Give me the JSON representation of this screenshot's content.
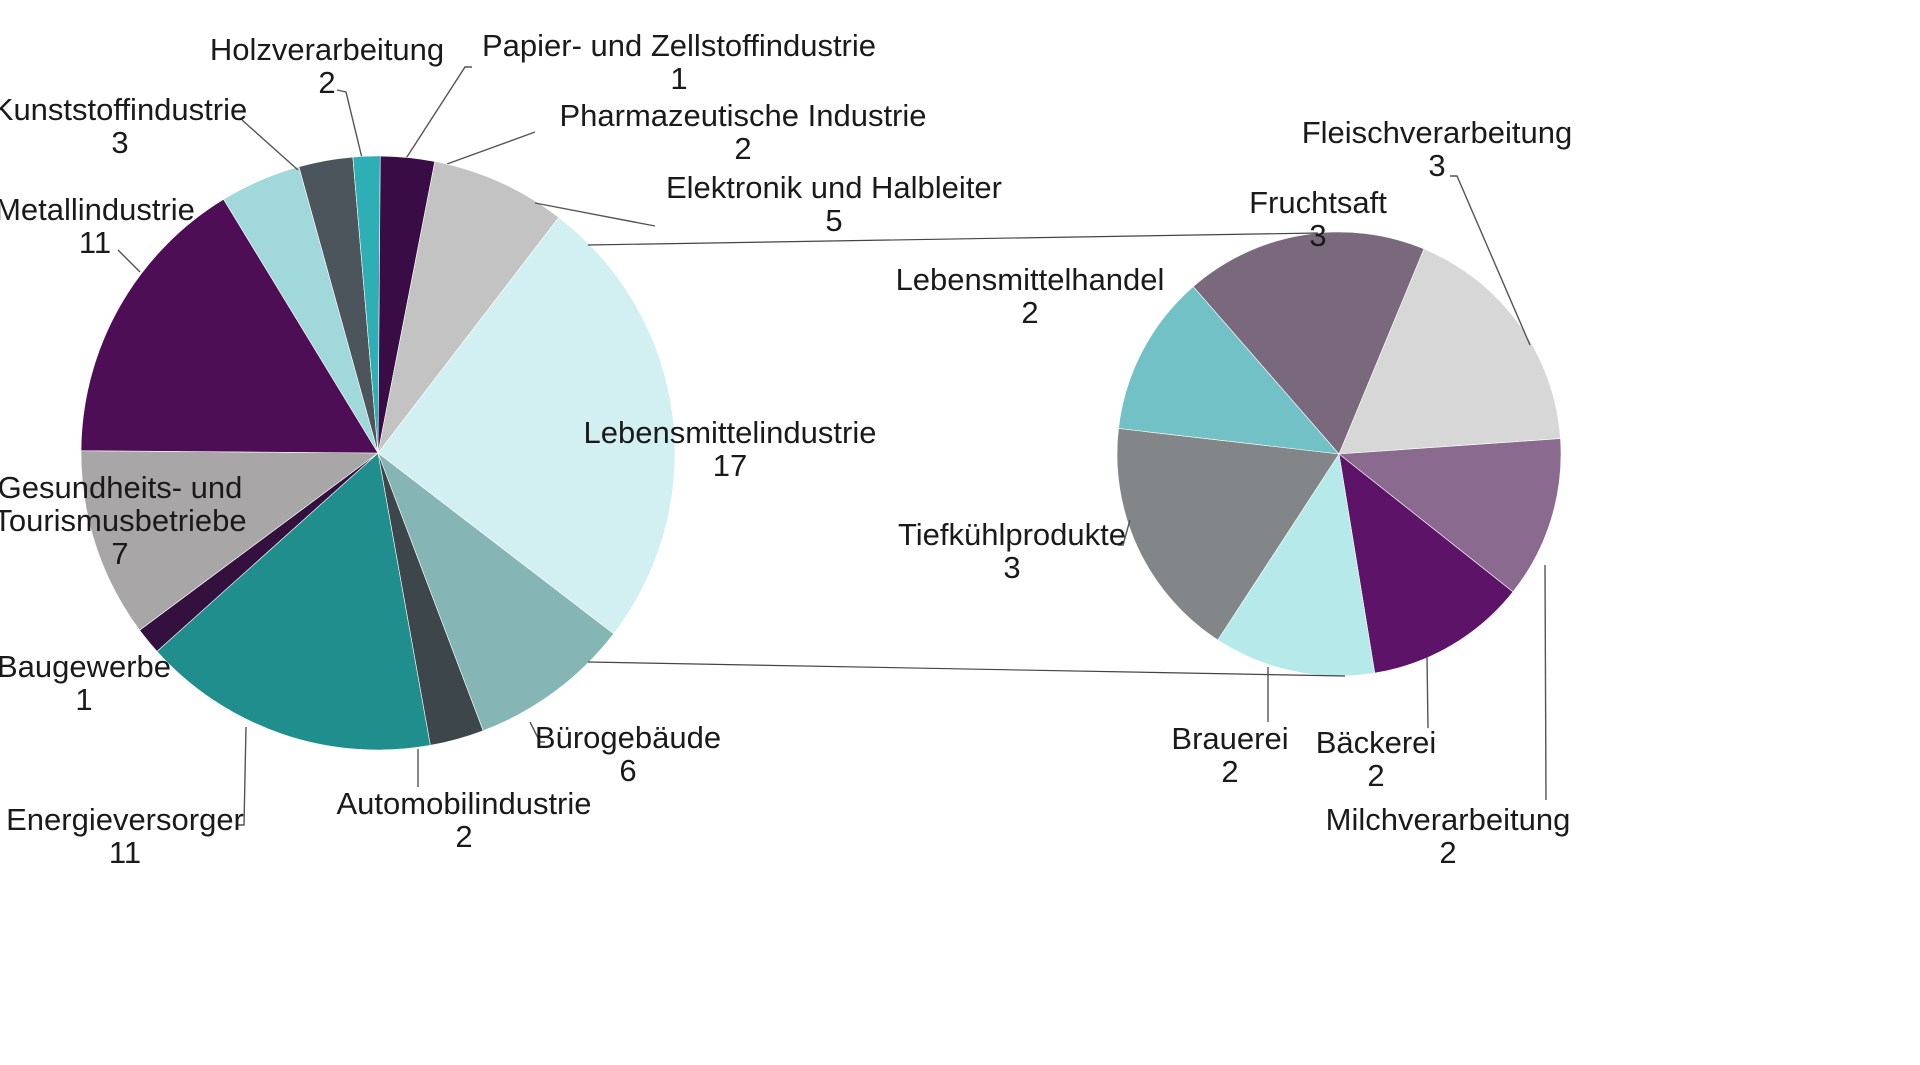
{
  "chart_data": {
    "type": "pie",
    "title": "",
    "main_pie": {
      "slices": [
        {
          "label": "Lebensmittelindustrie",
          "value": 17,
          "color": "#d2f0f2"
        },
        {
          "label": "Bürogebäude",
          "value": 6,
          "color": "#85b5b5"
        },
        {
          "label": "Automobilindustrie",
          "value": 2,
          "color": "#3d464b"
        },
        {
          "label": "Energieversorger",
          "value": 11,
          "color": "#218e8e"
        },
        {
          "label": "Baugewerbe",
          "value": 1,
          "color": "#33103d"
        },
        {
          "label": "Gesundheits- und Tourismusbetriebe",
          "label_lines": [
            "Gesundheits- und",
            "Tourismusbetriebe"
          ],
          "value": 7,
          "color": "#a8a6a7"
        },
        {
          "label": "Metallindustrie",
          "value": 11,
          "color": "#4e0e55"
        },
        {
          "label": "Kunststoffindustrie",
          "value": 3,
          "color": "#a0d8db"
        },
        {
          "label": "Holzverarbeitung",
          "value": 2,
          "color": "#4b555b"
        },
        {
          "label": "Papier- und Zellstoffindustrie",
          "value": 1,
          "color": "#2eaeb5"
        },
        {
          "label": "Pharmazeutische Industrie",
          "value": 2,
          "color": "#3a0c45"
        },
        {
          "label": "Elektronik und Halbleiter",
          "value": 5,
          "color": "#c3c3c3"
        }
      ]
    },
    "secondary_pie": {
      "slices": [
        {
          "label": "Fleischverarbeitung",
          "value": 3,
          "color": "#d7d7d7"
        },
        {
          "label": "Milchverarbeitung",
          "value": 2,
          "color": "#8b6a8f"
        },
        {
          "label": "Bäckerei",
          "value": 2,
          "color": "#5c1368"
        },
        {
          "label": "Brauerei",
          "value": 2,
          "color": "#b6e9ea"
        },
        {
          "label": "Tiefkühlprodukte",
          "value": 3,
          "color": "#828688"
        },
        {
          "label": "Lebensmittelhandel",
          "value": 2,
          "color": "#72c1c6"
        },
        {
          "label": "Fruchtsaft",
          "value": 3,
          "color": "#7a697c"
        }
      ]
    }
  }
}
